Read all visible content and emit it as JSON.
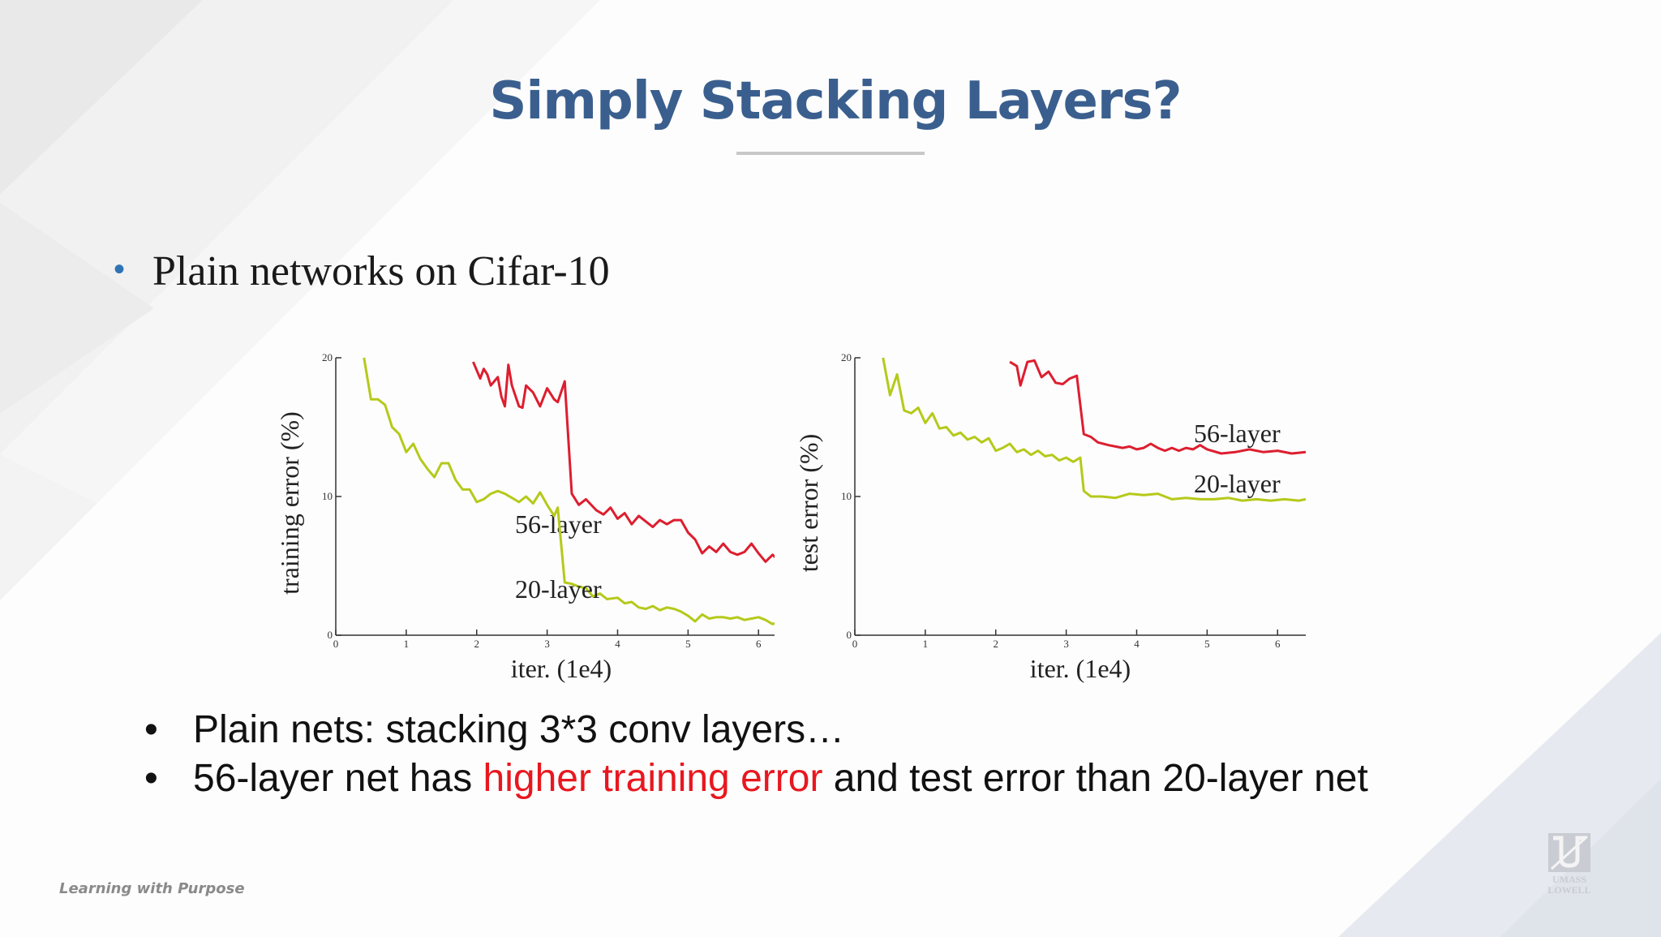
{
  "slide": {
    "title": "Simply Stacking Layers?",
    "bullet_1": "Plain networks on Cifar-10",
    "bullets_2": [
      {
        "text": "Plain nets: stacking 3*3 conv layers…"
      },
      {
        "pre": "56-layer net has ",
        "highlight": "higher training error",
        "post": " and test error than 20-layer net"
      }
    ],
    "bullet_symbol": "•",
    "footer": "Learning with Purpose",
    "logo_text": [
      "UMASS",
      "LOWELL"
    ],
    "colors": {
      "title": "#3a5f8e",
      "highlight": "#e8171f",
      "bullet": "#2e74b5",
      "series_56": "#dd1e2f",
      "series_20": "#b5c91a"
    }
  },
  "chart_data": [
    {
      "type": "line",
      "xlabel": "iter. (1e4)",
      "ylabel": "training error (%)",
      "xlim": [
        0,
        6.4
      ],
      "ylim": [
        0,
        20
      ],
      "xticks": [
        "0",
        "1",
        "2",
        "3",
        "4",
        "5",
        "6"
      ],
      "yticks": [
        "0",
        "10",
        "20"
      ],
      "series": [
        {
          "name": "56-layer",
          "x": [
            1.95,
            2.05,
            2.1,
            2.15,
            2.2,
            2.3,
            2.35,
            2.4,
            2.45,
            2.5,
            2.6,
            2.65,
            2.7,
            2.8,
            2.9,
            3.0,
            3.1,
            3.15,
            3.25,
            3.35,
            3.45,
            3.55,
            3.7,
            3.8,
            3.9,
            4.0,
            4.1,
            4.2,
            4.3,
            4.4,
            4.5,
            4.6,
            4.7,
            4.8,
            4.9,
            5.0,
            5.1,
            5.2,
            5.3,
            5.4,
            5.5,
            5.6,
            5.7,
            5.8,
            5.9,
            6.0,
            6.1,
            6.2,
            6.3,
            6.4
          ],
          "y": [
            19.7,
            18.5,
            19.2,
            18.8,
            18.0,
            18.6,
            17.2,
            16.5,
            19.5,
            18.0,
            16.5,
            16.4,
            18.0,
            17.5,
            16.5,
            17.8,
            17.0,
            16.8,
            18.3,
            10.2,
            9.4,
            9.8,
            9.0,
            8.7,
            9.2,
            8.4,
            8.8,
            8.0,
            8.6,
            8.2,
            7.8,
            8.3,
            8.0,
            8.3,
            8.3,
            7.4,
            6.9,
            5.9,
            6.4,
            6.0,
            6.6,
            6.0,
            5.8,
            6.0,
            6.6,
            5.9,
            5.3,
            5.8,
            5.3,
            5.9
          ],
          "label": "56-layer"
        },
        {
          "name": "20-layer",
          "x": [
            0.4,
            0.5,
            0.6,
            0.7,
            0.8,
            0.9,
            1.0,
            1.1,
            1.2,
            1.3,
            1.4,
            1.5,
            1.6,
            1.7,
            1.8,
            1.9,
            2.0,
            2.1,
            2.2,
            2.3,
            2.4,
            2.5,
            2.6,
            2.7,
            2.8,
            2.9,
            3.0,
            3.1,
            3.15,
            3.25,
            3.35,
            3.45,
            3.55,
            3.65,
            3.75,
            3.85,
            4.0,
            4.1,
            4.2,
            4.3,
            4.4,
            4.5,
            4.6,
            4.7,
            4.8,
            4.9,
            5.0,
            5.1,
            5.2,
            5.3,
            5.4,
            5.5,
            5.6,
            5.7,
            5.8,
            5.9,
            6.0,
            6.1,
            6.2,
            6.3,
            6.4
          ],
          "y": [
            20.0,
            17.0,
            17.0,
            16.6,
            15.0,
            14.5,
            13.2,
            13.8,
            12.7,
            12.0,
            11.4,
            12.4,
            12.4,
            11.2,
            10.5,
            10.5,
            9.6,
            9.8,
            10.2,
            10.4,
            10.2,
            9.9,
            9.6,
            10.0,
            9.5,
            10.3,
            9.4,
            8.6,
            9.2,
            3.8,
            3.7,
            3.5,
            3.4,
            2.8,
            3.0,
            2.6,
            2.7,
            2.3,
            2.4,
            2.0,
            1.9,
            2.1,
            1.8,
            2.0,
            1.9,
            1.7,
            1.4,
            1.0,
            1.5,
            1.2,
            1.3,
            1.3,
            1.2,
            1.3,
            1.1,
            1.2,
            1.3,
            1.1,
            0.8,
            1.0,
            1.2
          ],
          "label": "20-layer"
        }
      ]
    },
    {
      "type": "line",
      "xlabel": "iter. (1e4)",
      "ylabel": "test error (%)",
      "xlim": [
        0,
        6.4
      ],
      "ylim": [
        0,
        20
      ],
      "xticks": [
        "0",
        "1",
        "2",
        "3",
        "4",
        "5",
        "6"
      ],
      "yticks": [
        "0",
        "10",
        "20"
      ],
      "series": [
        {
          "name": "56-layer",
          "x": [
            2.2,
            2.3,
            2.35,
            2.45,
            2.55,
            2.65,
            2.75,
            2.85,
            2.95,
            3.05,
            3.15,
            3.25,
            3.35,
            3.45,
            3.6,
            3.7,
            3.8,
            3.9,
            4.0,
            4.1,
            4.2,
            4.3,
            4.4,
            4.5,
            4.6,
            4.7,
            4.8,
            4.9,
            5.0,
            5.2,
            5.4,
            5.6,
            5.8,
            6.0,
            6.2,
            6.4
          ],
          "y": [
            19.7,
            19.4,
            18.0,
            19.7,
            19.8,
            18.6,
            19.0,
            18.2,
            18.1,
            18.5,
            18.7,
            14.5,
            14.3,
            13.9,
            13.7,
            13.6,
            13.5,
            13.6,
            13.4,
            13.5,
            13.8,
            13.5,
            13.3,
            13.5,
            13.3,
            13.5,
            13.4,
            13.7,
            13.4,
            13.1,
            13.2,
            13.4,
            13.2,
            13.3,
            13.1,
            13.2
          ],
          "label": "56-layer"
        },
        {
          "name": "20-layer",
          "x": [
            0.4,
            0.5,
            0.6,
            0.7,
            0.8,
            0.9,
            1.0,
            1.1,
            1.2,
            1.3,
            1.4,
            1.5,
            1.6,
            1.7,
            1.8,
            1.9,
            2.0,
            2.1,
            2.2,
            2.3,
            2.4,
            2.5,
            2.6,
            2.7,
            2.8,
            2.9,
            3.0,
            3.1,
            3.2,
            3.25,
            3.35,
            3.5,
            3.7,
            3.9,
            4.1,
            4.3,
            4.5,
            4.7,
            4.9,
            5.1,
            5.3,
            5.5,
            5.7,
            5.9,
            6.1,
            6.3,
            6.4
          ],
          "y": [
            20.0,
            17.3,
            18.8,
            16.2,
            16.0,
            16.4,
            15.3,
            16.0,
            14.9,
            15.0,
            14.4,
            14.6,
            14.1,
            14.3,
            13.9,
            14.2,
            13.3,
            13.5,
            13.8,
            13.2,
            13.4,
            13.0,
            13.3,
            12.9,
            13.0,
            12.6,
            12.8,
            12.5,
            12.8,
            10.4,
            10.0,
            10.0,
            9.9,
            10.2,
            10.1,
            10.2,
            9.8,
            9.9,
            9.8,
            9.8,
            9.9,
            9.7,
            9.8,
            9.7,
            9.8,
            9.7,
            9.8
          ],
          "label": "20-layer"
        }
      ]
    }
  ]
}
